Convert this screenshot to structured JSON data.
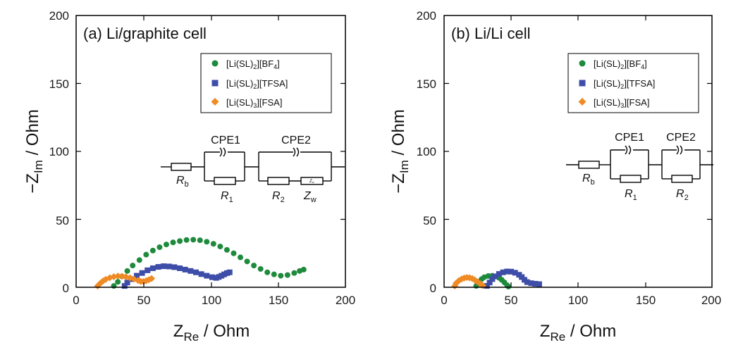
{
  "chart_data": [
    {
      "type": "scatter",
      "title": "(a) Li/graphite cell",
      "xlabel": "Z_Re / Ohm",
      "ylabel": "−Z_Im / Ohm",
      "xlim": [
        0,
        200
      ],
      "ylim": [
        0,
        200
      ],
      "xticks": [
        "0",
        "50",
        "100",
        "150",
        "200"
      ],
      "yticks": [
        "0",
        "50",
        "100",
        "150",
        "200"
      ],
      "legend_position": "top-right",
      "circuit": {
        "cpe_labels": [
          "CPE1",
          "CPE2"
        ],
        "resistor_labels": [
          "R_b",
          "R_1",
          "R_2",
          "Z_w"
        ],
        "warburg_box_text": "Z_w"
      },
      "series": [
        {
          "name": "[Li(SL)2][BF4]",
          "color": "#1e8a3c",
          "marker": "circle",
          "points": [
            [
              28,
              1
            ],
            [
              31,
              4
            ],
            [
              34,
              8
            ],
            [
              38,
              12
            ],
            [
              42,
              16
            ],
            [
              47,
              20
            ],
            [
              52,
              24
            ],
            [
              57,
              27
            ],
            [
              62,
              29.5
            ],
            [
              67,
              31.5
            ],
            [
              72,
              33
            ],
            [
              77,
              34
            ],
            [
              82,
              34.8
            ],
            [
              87,
              35
            ],
            [
              92,
              34.6
            ],
            [
              97,
              33.5
            ],
            [
              102,
              32
            ],
            [
              107,
              30
            ],
            [
              112,
              27.5
            ],
            [
              117,
              25
            ],
            [
              122,
              22
            ],
            [
              127,
              19
            ],
            [
              132,
              16
            ],
            [
              137,
              13.5
            ],
            [
              142,
              11
            ],
            [
              147,
              9.5
            ],
            [
              152,
              8.5
            ],
            [
              157,
              9
            ],
            [
              162,
              10.5
            ],
            [
              166,
              12
            ],
            [
              169,
              13
            ]
          ]
        },
        {
          "name": "[Li(SL)2][TFSA]",
          "color": "#3e4ea8",
          "marker": "square",
          "points": [
            [
              36,
              1
            ],
            [
              38,
              3.5
            ],
            [
              41,
              6
            ],
            [
              45,
              8.5
            ],
            [
              49,
              10.5
            ],
            [
              53,
              12.5
            ],
            [
              57,
              14
            ],
            [
              61,
              15
            ],
            [
              65,
              15.5
            ],
            [
              69,
              15.3
            ],
            [
              73,
              14.8
            ],
            [
              77,
              14
            ],
            [
              81,
              13
            ],
            [
              85,
              12
            ],
            [
              89,
              11
            ],
            [
              93,
              9.7
            ],
            [
              97,
              8.5
            ],
            [
              101,
              7.4
            ],
            [
              104,
              6.9
            ],
            [
              106,
              7.6
            ],
            [
              108,
              8.5
            ],
            [
              110,
              9.5
            ],
            [
              112,
              10.4
            ],
            [
              114,
              11
            ]
          ]
        },
        {
          "name": "[Li(SL)3][FSA]",
          "color": "#f08a24",
          "marker": "diamond",
          "points": [
            [
              16,
              1
            ],
            [
              18,
              3
            ],
            [
              20,
              4.6
            ],
            [
              22,
              5.8
            ],
            [
              25,
              7
            ],
            [
              28,
              7.8
            ],
            [
              31,
              8.2
            ],
            [
              34,
              8.1
            ],
            [
              37,
              7.7
            ],
            [
              40,
              6.9
            ],
            [
              43,
              6
            ],
            [
              46,
              5
            ],
            [
              48,
              4.3
            ],
            [
              50,
              4.2
            ],
            [
              52,
              4.8
            ],
            [
              54,
              5.6
            ],
            [
              56,
              6.4
            ]
          ]
        }
      ]
    },
    {
      "type": "scatter",
      "title": "(b) Li/Li cell",
      "xlabel": "Z_Re / Ohm",
      "ylabel": "−Z_Im / Ohm",
      "xlim": [
        0,
        200
      ],
      "ylim": [
        0,
        200
      ],
      "xticks": [
        "0",
        "50",
        "100",
        "150",
        "200"
      ],
      "yticks": [
        "0",
        "50",
        "100",
        "150",
        "200"
      ],
      "legend_position": "top-right",
      "circuit": {
        "cpe_labels": [
          "CPE1",
          "CPE2"
        ],
        "resistor_labels": [
          "R_b",
          "R_1",
          "R_2"
        ]
      },
      "series": [
        {
          "name": "[Li(SL)2][BF4]",
          "color": "#1e8a3c",
          "marker": "circle",
          "points": [
            [
              24,
              1
            ],
            [
              26,
              4
            ],
            [
              28,
              6
            ],
            [
              30,
              7.4
            ],
            [
              33,
              8.3
            ],
            [
              36,
              8.5
            ],
            [
              39,
              8
            ],
            [
              41,
              7
            ],
            [
              43,
              5.5
            ],
            [
              45,
              3.6
            ],
            [
              47,
              1.5
            ],
            [
              48,
              0.5
            ]
          ]
        },
        {
          "name": "[Li(SL)2][TFSA]",
          "color": "#3e4ea8",
          "marker": "square",
          "points": [
            [
              32,
              1
            ],
            [
              34,
              3.5
            ],
            [
              36,
              6
            ],
            [
              38,
              8
            ],
            [
              41,
              9.8
            ],
            [
              44,
              11
            ],
            [
              47,
              11.6
            ],
            [
              50,
              11.5
            ],
            [
              53,
              10.7
            ],
            [
              56,
              9.2
            ],
            [
              58,
              7.5
            ],
            [
              60,
              5.5
            ],
            [
              62,
              3.8
            ],
            [
              65,
              3
            ],
            [
              68,
              2.6
            ],
            [
              71,
              2.3
            ]
          ]
        },
        {
          "name": "[Li(SL)3][FSA]",
          "color": "#f08a24",
          "marker": "diamond",
          "points": [
            [
              8,
              1
            ],
            [
              9,
              3
            ],
            [
              11,
              4.8
            ],
            [
              13,
              6
            ],
            [
              15,
              6.8
            ],
            [
              17,
              7.2
            ],
            [
              19,
              7
            ],
            [
              21,
              6.4
            ],
            [
              23,
              5.3
            ],
            [
              25,
              4
            ],
            [
              27,
              2.6
            ],
            [
              28,
              1.8
            ],
            [
              29,
              1.2
            ]
          ]
        }
      ]
    }
  ]
}
